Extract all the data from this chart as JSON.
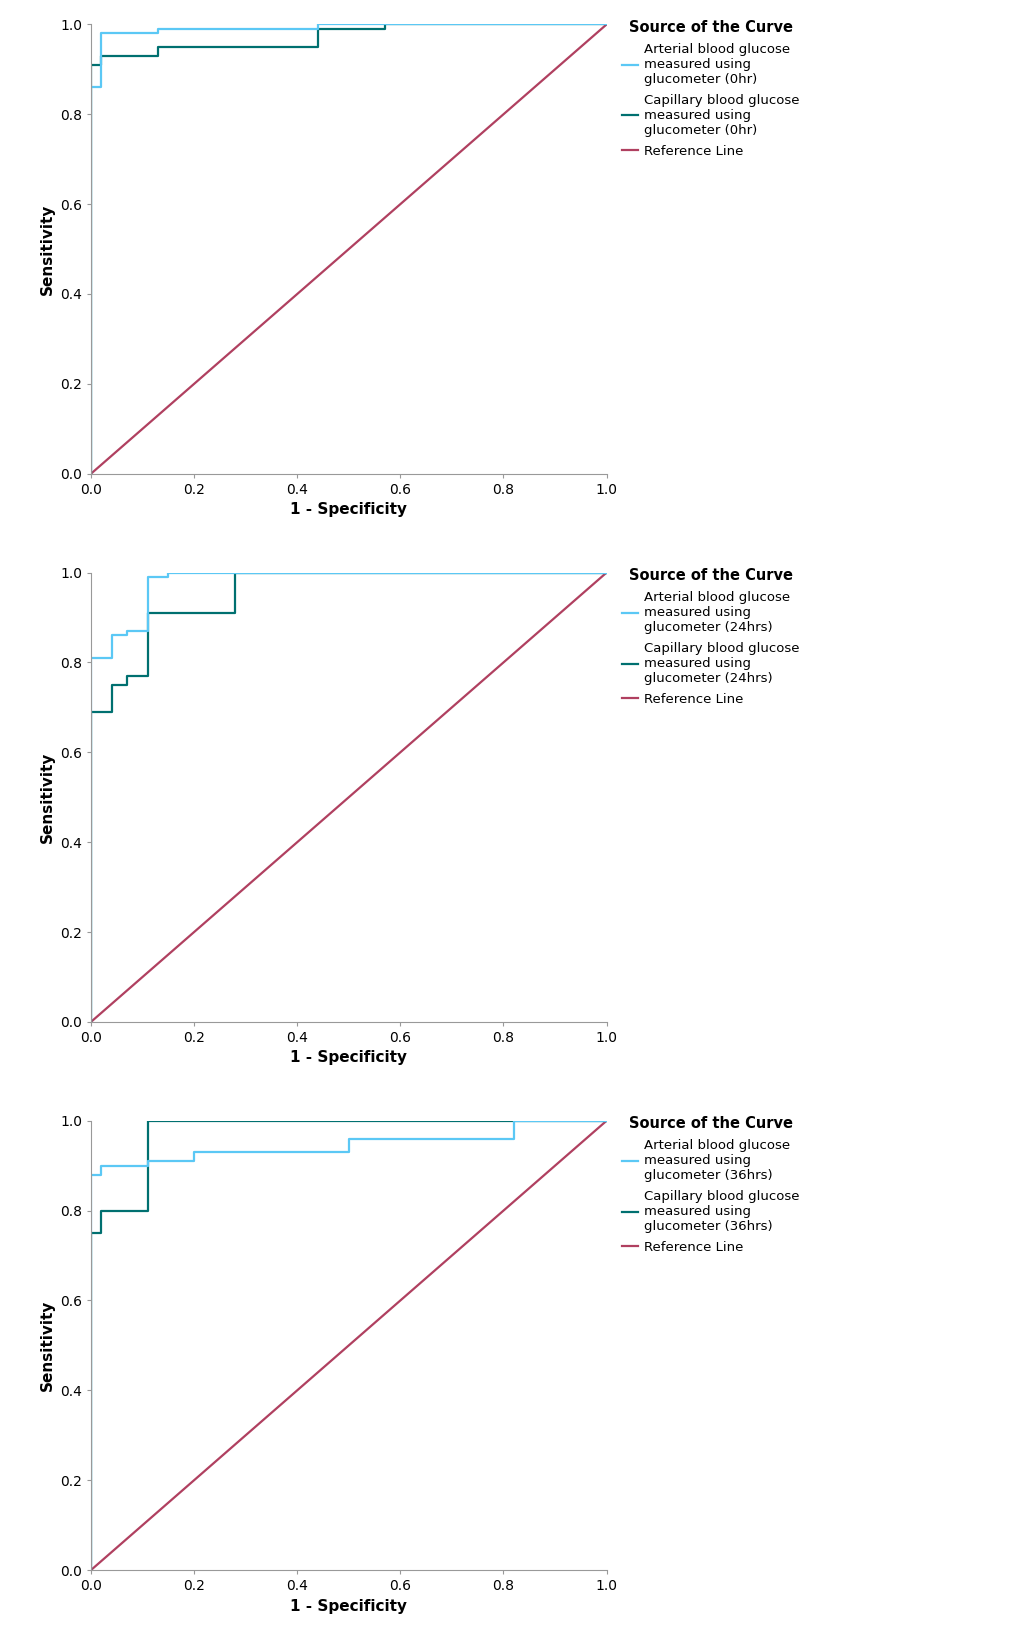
{
  "plots": [
    {
      "title_hour": "0hr",
      "arterial_x": [
        0,
        0,
        0.02,
        0.02,
        0.13,
        0.13,
        0.44,
        0.44,
        0.57,
        0.57,
        1.0
      ],
      "arterial_y": [
        0,
        0.86,
        0.86,
        0.98,
        0.98,
        0.99,
        0.99,
        1.0,
        1.0,
        1.0,
        1.0
      ],
      "capillary_x": [
        0,
        0,
        0.02,
        0.02,
        0.13,
        0.13,
        0.44,
        0.44,
        0.57,
        0.57,
        1.0
      ],
      "capillary_y": [
        0,
        0.91,
        0.91,
        0.93,
        0.93,
        0.95,
        0.95,
        0.99,
        0.99,
        1.0,
        1.0
      ],
      "legend_art": "Arterial blood glucose\nmeasured using\nglucometer (0hr)",
      "legend_cap": "Capillary blood glucose\nmeasured using\nglucometer (0hr)"
    },
    {
      "title_hour": "24hrs",
      "arterial_x": [
        0,
        0,
        0.04,
        0.04,
        0.07,
        0.07,
        0.11,
        0.11,
        0.15,
        0.15,
        0.28,
        0.28,
        1.0
      ],
      "arterial_y": [
        0,
        0.81,
        0.81,
        0.86,
        0.86,
        0.87,
        0.87,
        0.99,
        0.99,
        1.0,
        1.0,
        1.0,
        1.0
      ],
      "capillary_x": [
        0,
        0,
        0.04,
        0.04,
        0.07,
        0.07,
        0.11,
        0.11,
        0.15,
        0.15,
        0.28,
        0.28,
        1.0
      ],
      "capillary_y": [
        0,
        0.69,
        0.69,
        0.75,
        0.75,
        0.77,
        0.77,
        0.91,
        0.91,
        0.91,
        0.91,
        1.0,
        1.0
      ],
      "legend_art": "Arterial blood glucose\nmeasured using\nglucometer (24hrs)",
      "legend_cap": "Capillary blood glucose\nmeasured using\nglucometer (24hrs)"
    },
    {
      "title_hour": "36hrs",
      "arterial_x": [
        0,
        0,
        0.02,
        0.02,
        0.11,
        0.11,
        0.2,
        0.2,
        0.5,
        0.5,
        0.82,
        0.82,
        1.0
      ],
      "arterial_y": [
        0,
        0.88,
        0.88,
        0.9,
        0.9,
        0.91,
        0.91,
        0.93,
        0.93,
        0.96,
        0.96,
        1.0,
        1.0
      ],
      "capillary_x": [
        0,
        0,
        0.02,
        0.02,
        0.11,
        0.11,
        0.2,
        0.2,
        0.5,
        0.5,
        0.82,
        0.82,
        1.0
      ],
      "capillary_y": [
        0,
        0.75,
        0.75,
        0.8,
        0.8,
        1.0,
        1.0,
        1.0,
        1.0,
        1.0,
        1.0,
        1.0,
        1.0
      ],
      "legend_art": "Arterial blood glucose\nmeasured using\nglucometer (36hrs)",
      "legend_cap": "Capillary blood glucose\nmeasured using\nglucometer (36hrs)"
    }
  ],
  "arterial_color": "#5BC8F5",
  "capillary_color": "#007070",
  "reference_color": "#B04060",
  "xlabel": "1 - Specificity",
  "ylabel": "Sensitivity",
  "legend_title": "Source of the Curve",
  "legend_ref": "Reference Line",
  "xlim": [
    0.0,
    1.0
  ],
  "ylim": [
    0.0,
    1.0
  ],
  "xticks": [
    0.0,
    0.2,
    0.4,
    0.6,
    0.8,
    1.0
  ],
  "yticks": [
    0.0,
    0.2,
    0.4,
    0.6,
    0.8,
    1.0
  ],
  "line_width": 1.6,
  "tick_font_size": 10,
  "label_font_size": 11,
  "legend_font_size": 9.5,
  "legend_title_font_size": 10.5
}
